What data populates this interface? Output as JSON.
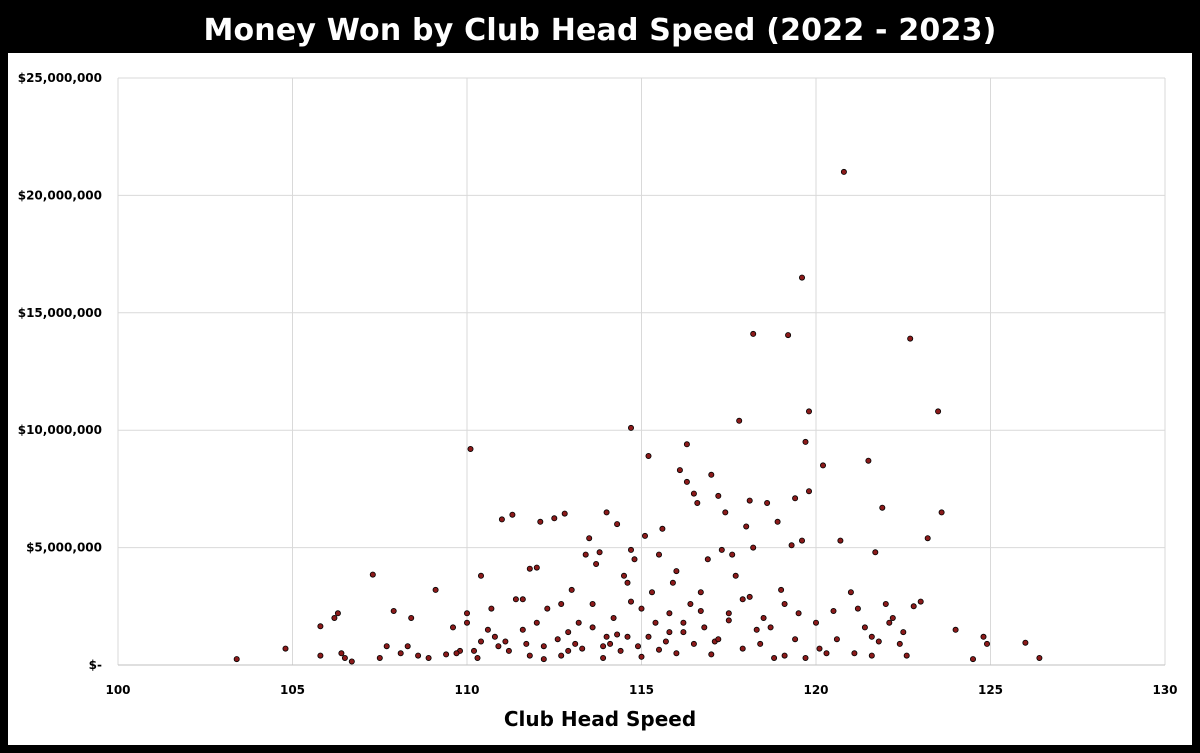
{
  "chart_data": {
    "type": "scatter",
    "title": "Money Won by Club Head Speed (2022 - 2023)",
    "xlabel": "Club Head Speed",
    "ylabel": "",
    "xlim": [
      100,
      130
    ],
    "ylim": [
      0,
      25000000
    ],
    "x_ticks": [
      100,
      105,
      110,
      115,
      120,
      125,
      130
    ],
    "x_tick_labels": [
      "100",
      "105",
      "110",
      "115",
      "120",
      "125",
      "130"
    ],
    "y_ticks": [
      0,
      5000000,
      10000000,
      15000000,
      20000000,
      25000000
    ],
    "y_tick_labels": [
      "$-",
      "$5,000,000",
      "$10,000,000",
      "$15,000,000",
      "$20,000,000",
      "$25,000,000"
    ],
    "grid": true,
    "legend": "none",
    "marker_color": "#8b1a1a",
    "marker_edge_color": "#000000",
    "points": [
      [
        103.4,
        250000
      ],
      [
        104.8,
        700000
      ],
      [
        105.8,
        400000
      ],
      [
        105.8,
        1650000
      ],
      [
        106.2,
        2000000
      ],
      [
        106.3,
        2200000
      ],
      [
        106.4,
        500000
      ],
      [
        106.5,
        300000
      ],
      [
        106.7,
        150000
      ],
      [
        107.3,
        3850000
      ],
      [
        107.5,
        300000
      ],
      [
        107.7,
        800000
      ],
      [
        107.9,
        2300000
      ],
      [
        108.1,
        500000
      ],
      [
        108.3,
        800000
      ],
      [
        108.4,
        2000000
      ],
      [
        108.6,
        400000
      ],
      [
        108.9,
        300000
      ],
      [
        109.1,
        3200000
      ],
      [
        109.4,
        450000
      ],
      [
        109.6,
        1600000
      ],
      [
        109.8,
        600000
      ],
      [
        110.0,
        1800000
      ],
      [
        110.0,
        2200000
      ],
      [
        110.1,
        9200000
      ],
      [
        110.2,
        600000
      ],
      [
        110.4,
        1000000
      ],
      [
        110.4,
        3800000
      ],
      [
        110.6,
        1500000
      ],
      [
        110.7,
        2400000
      ],
      [
        110.9,
        800000
      ],
      [
        111.0,
        6200000
      ],
      [
        111.1,
        1000000
      ],
      [
        111.3,
        6400000
      ],
      [
        111.4,
        2800000
      ],
      [
        111.6,
        1500000
      ],
      [
        111.6,
        2800000
      ],
      [
        111.8,
        400000
      ],
      [
        111.8,
        4100000
      ],
      [
        112.0,
        4150000
      ],
      [
        112.0,
        1800000
      ],
      [
        112.1,
        6100000
      ],
      [
        112.2,
        800000
      ],
      [
        112.3,
        2400000
      ],
      [
        112.5,
        6250000
      ],
      [
        112.7,
        400000
      ],
      [
        112.7,
        2600000
      ],
      [
        112.8,
        6450000
      ],
      [
        112.9,
        1400000
      ],
      [
        113.0,
        3200000
      ],
      [
        113.1,
        900000
      ],
      [
        113.2,
        1800000
      ],
      [
        113.4,
        4700000
      ],
      [
        113.5,
        5400000
      ],
      [
        113.6,
        2600000
      ],
      [
        113.7,
        4300000
      ],
      [
        113.8,
        4800000
      ],
      [
        113.9,
        800000
      ],
      [
        114.0,
        6500000
      ],
      [
        114.0,
        1200000
      ],
      [
        114.2,
        2000000
      ],
      [
        114.3,
        6000000
      ],
      [
        114.4,
        600000
      ],
      [
        114.5,
        3800000
      ],
      [
        114.6,
        1200000
      ],
      [
        114.6,
        3500000
      ],
      [
        114.7,
        10100000
      ],
      [
        114.7,
        4900000
      ],
      [
        114.8,
        4500000
      ],
      [
        114.9,
        800000
      ],
      [
        115.0,
        2400000
      ],
      [
        115.1,
        5500000
      ],
      [
        115.2,
        8900000
      ],
      [
        115.3,
        3100000
      ],
      [
        115.4,
        1800000
      ],
      [
        115.5,
        4700000
      ],
      [
        115.6,
        5800000
      ],
      [
        115.7,
        1000000
      ],
      [
        115.8,
        2200000
      ],
      [
        115.9,
        3500000
      ],
      [
        116.0,
        4000000
      ],
      [
        116.1,
        8300000
      ],
      [
        116.2,
        1400000
      ],
      [
        116.3,
        9400000
      ],
      [
        116.3,
        7800000
      ],
      [
        116.4,
        2600000
      ],
      [
        116.5,
        7300000
      ],
      [
        116.6,
        6900000
      ],
      [
        116.7,
        3100000
      ],
      [
        116.8,
        1600000
      ],
      [
        116.9,
        4500000
      ],
      [
        117.0,
        8100000
      ],
      [
        117.1,
        1000000
      ],
      [
        117.2,
        7200000
      ],
      [
        117.3,
        4900000
      ],
      [
        117.4,
        6500000
      ],
      [
        117.5,
        2200000
      ],
      [
        117.6,
        4700000
      ],
      [
        117.7,
        3800000
      ],
      [
        117.8,
        10400000
      ],
      [
        117.9,
        2800000
      ],
      [
        118.0,
        5900000
      ],
      [
        118.1,
        7000000
      ],
      [
        118.2,
        14100000
      ],
      [
        118.2,
        5000000
      ],
      [
        118.3,
        1500000
      ],
      [
        118.5,
        2000000
      ],
      [
        118.6,
        6900000
      ],
      [
        118.8,
        300000
      ],
      [
        118.9,
        6100000
      ],
      [
        119.0,
        3200000
      ],
      [
        119.1,
        2600000
      ],
      [
        119.2,
        14050000
      ],
      [
        119.3,
        5100000
      ],
      [
        119.4,
        7100000
      ],
      [
        119.5,
        2200000
      ],
      [
        119.6,
        5300000
      ],
      [
        119.6,
        16500000
      ],
      [
        119.7,
        9500000
      ],
      [
        119.8,
        7400000
      ],
      [
        119.8,
        10800000
      ],
      [
        120.0,
        1800000
      ],
      [
        120.2,
        8500000
      ],
      [
        120.3,
        500000
      ],
      [
        120.5,
        2300000
      ],
      [
        120.7,
        5300000
      ],
      [
        120.8,
        21000000
      ],
      [
        121.0,
        3100000
      ],
      [
        121.2,
        2400000
      ],
      [
        121.4,
        1600000
      ],
      [
        121.5,
        8700000
      ],
      [
        121.7,
        4800000
      ],
      [
        121.8,
        1000000
      ],
      [
        121.9,
        6700000
      ],
      [
        122.0,
        2600000
      ],
      [
        122.2,
        2000000
      ],
      [
        122.4,
        900000
      ],
      [
        122.6,
        400000
      ],
      [
        122.7,
        13900000
      ],
      [
        122.8,
        2500000
      ],
      [
        123.2,
        5400000
      ],
      [
        123.5,
        10800000
      ],
      [
        123.6,
        6500000
      ],
      [
        124.0,
        1500000
      ],
      [
        124.5,
        250000
      ],
      [
        124.8,
        1200000
      ],
      [
        124.9,
        900000
      ],
      [
        126.0,
        950000
      ],
      [
        126.4,
        300000
      ],
      [
        109.7,
        500000
      ],
      [
        110.3,
        300000
      ],
      [
        110.8,
        1200000
      ],
      [
        111.2,
        600000
      ],
      [
        111.7,
        900000
      ],
      [
        112.2,
        250000
      ],
      [
        112.6,
        1100000
      ],
      [
        112.9,
        600000
      ],
      [
        113.3,
        700000
      ],
      [
        113.6,
        1600000
      ],
      [
        113.9,
        300000
      ],
      [
        114.1,
        900000
      ],
      [
        114.3,
        1300000
      ],
      [
        114.7,
        2700000
      ],
      [
        115.0,
        350000
      ],
      [
        115.2,
        1200000
      ],
      [
        115.5,
        650000
      ],
      [
        115.8,
        1400000
      ],
      [
        116.0,
        500000
      ],
      [
        116.2,
        1800000
      ],
      [
        116.5,
        900000
      ],
      [
        116.7,
        2300000
      ],
      [
        117.0,
        450000
      ],
      [
        117.2,
        1100000
      ],
      [
        117.5,
        1900000
      ],
      [
        117.9,
        700000
      ],
      [
        118.1,
        2900000
      ],
      [
        118.4,
        900000
      ],
      [
        118.7,
        1600000
      ],
      [
        119.1,
        400000
      ],
      [
        119.4,
        1100000
      ],
      [
        119.7,
        300000
      ],
      [
        120.1,
        700000
      ],
      [
        120.6,
        1100000
      ],
      [
        121.1,
        500000
      ],
      [
        121.6,
        1200000
      ],
      [
        122.1,
        1800000
      ],
      [
        122.5,
        1400000
      ],
      [
        123.0,
        2700000
      ],
      [
        121.6,
        400000
      ]
    ]
  },
  "page": {
    "background": "#ffffff",
    "frame_color": "#000000",
    "gridline_color": "#d9d9d9"
  }
}
